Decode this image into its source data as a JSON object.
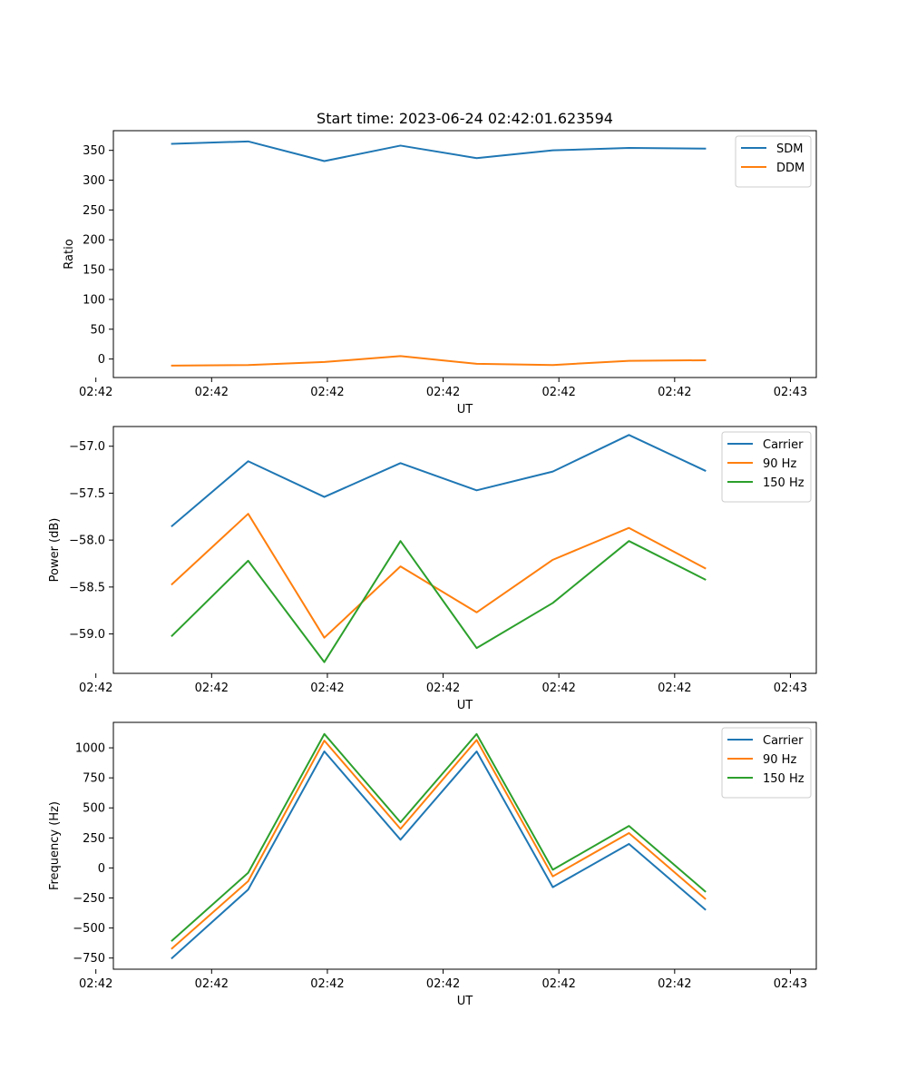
{
  "figure": {
    "title": "Start time: 2023-06-24 02:42:01.623594"
  },
  "colors": {
    "blue": "#1f77b4",
    "orange": "#ff7f0e",
    "green": "#2ca02c"
  },
  "chart_data": [
    {
      "type": "line",
      "title": "Start time: 2023-06-24 02:42:01.623594",
      "xlabel": "UT",
      "ylabel": "Ratio",
      "x_tick_labels": [
        "02:42",
        "02:42",
        "02:42",
        "02:42",
        "02:42",
        "02:42",
        "02:43"
      ],
      "x_index": [
        1,
        2,
        3,
        4,
        5,
        6,
        7,
        8
      ],
      "xlim": [
        0.23,
        9.46
      ],
      "ylim": [
        -31,
        383
      ],
      "yticks": [
        0,
        50,
        100,
        150,
        200,
        250,
        300,
        350
      ],
      "y_tick_labels": [
        "0",
        "50",
        "100",
        "150",
        "200",
        "250",
        "300",
        "350"
      ],
      "legend": "upper right",
      "series": [
        {
          "name": "SDM",
          "color": "#1f77b4",
          "values": [
            361,
            365,
            332,
            358,
            337,
            350,
            354,
            353
          ]
        },
        {
          "name": "DDM",
          "color": "#ff7f0e",
          "values": [
            -11,
            -10,
            -5,
            5,
            -8,
            -10,
            -3,
            -2
          ]
        }
      ]
    },
    {
      "type": "line",
      "xlabel": "UT",
      "ylabel": "Power (dB)",
      "x_tick_labels": [
        "02:42",
        "02:42",
        "02:42",
        "02:42",
        "02:42",
        "02:42",
        "02:43"
      ],
      "x_index": [
        1,
        2,
        3,
        4,
        5,
        6,
        7,
        8
      ],
      "xlim": [
        0.23,
        9.46
      ],
      "ylim": [
        -59.42,
        -56.79
      ],
      "yticks": [
        -59.0,
        -58.5,
        -58.0,
        -57.5,
        -57.0
      ],
      "y_tick_labels": [
        "−59.0",
        "−58.5",
        "−58.0",
        "−57.5",
        "−57.0"
      ],
      "legend": "upper right",
      "series": [
        {
          "name": "Carrier",
          "color": "#1f77b4",
          "values": [
            -57.85,
            -57.16,
            -57.54,
            -57.18,
            -57.47,
            -57.27,
            -56.88,
            -57.26
          ]
        },
        {
          "name": "90 Hz",
          "color": "#ff7f0e",
          "values": [
            -58.47,
            -57.72,
            -59.04,
            -58.28,
            -58.77,
            -58.21,
            -57.87,
            -58.3
          ]
        },
        {
          "name": "150 Hz",
          "color": "#2ca02c",
          "values": [
            -59.02,
            -58.22,
            -59.3,
            -58.01,
            -59.15,
            -58.67,
            -58.01,
            -58.42
          ]
        }
      ]
    },
    {
      "type": "line",
      "xlabel": "UT",
      "ylabel": "Frequency (Hz)",
      "x_tick_labels": [
        "02:42",
        "02:42",
        "02:42",
        "02:42",
        "02:42",
        "02:42",
        "02:43"
      ],
      "x_index": [
        1,
        2,
        3,
        4,
        5,
        6,
        7,
        8
      ],
      "xlim": [
        0.23,
        9.46
      ],
      "ylim": [
        -843,
        1212
      ],
      "yticks": [
        -750,
        -500,
        -250,
        0,
        250,
        500,
        750,
        1000
      ],
      "y_tick_labels": [
        "−750",
        "−500",
        "−250",
        "0",
        "250",
        "500",
        "750",
        "1000"
      ],
      "legend": "upper right",
      "series": [
        {
          "name": "Carrier",
          "color": "#1f77b4",
          "values": [
            -750,
            -180,
            970,
            235,
            970,
            -160,
            200,
            -345
          ]
        },
        {
          "name": "90 Hz",
          "color": "#ff7f0e",
          "values": [
            -670,
            -110,
            1060,
            325,
            1065,
            -70,
            290,
            -255
          ]
        },
        {
          "name": "150 Hz",
          "color": "#2ca02c",
          "values": [
            -605,
            -40,
            1115,
            380,
            1115,
            -15,
            350,
            -195
          ]
        }
      ]
    }
  ]
}
